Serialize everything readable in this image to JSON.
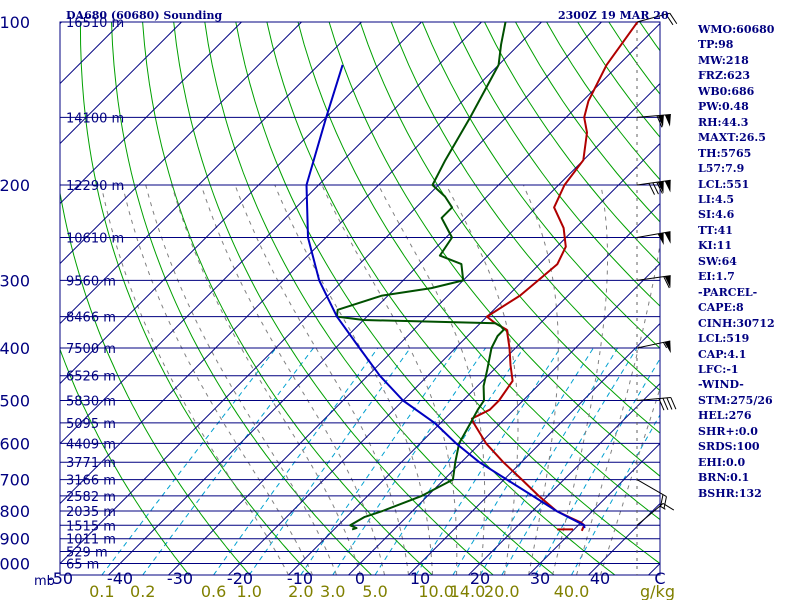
{
  "header": {
    "station": "DA680 (60680) Sounding",
    "time": "2300Z 19 MAR 20"
  },
  "indices": [
    "WMO:60680",
    "TP:98",
    "MW:218",
    "FRZ:623",
    "WB0:686",
    "PW:0.48",
    "RH:44.3",
    "MAXT:26.5",
    "TH:5765",
    "L57:7.9",
    "LCL:551",
    "LI:4.5",
    "SI:4.6",
    "TT:41",
    "KI:11",
    "SW:64",
    "EI:1.7",
    "-PARCEL-",
    "CAPE:8",
    "CINH:30712",
    "LCL:519",
    "CAP:4.1",
    "LFC:-1",
    "-WIND-",
    "STM:275/26",
    "HEL:276",
    "SHR+:0.0",
    "SRDS:100",
    "EHI:0.0",
    "BRN:0.1",
    "BSHR:132"
  ],
  "colors": {
    "background": "#ffffff",
    "isobar": "#000080",
    "isotherm": "#000080",
    "dry_adiabat": "#00a000",
    "moist_adiabat": "#808080",
    "mixing_ratio": "#00a0d0",
    "temperature": "#b00000",
    "dewpoint": "#005000",
    "parcel": "#0000c0",
    "label": "#000080",
    "mixing_label": "#808000",
    "wind_barb": "#000000"
  },
  "chart_data": {
    "type": "skew-t",
    "pressure_axis": {
      "scale": "log",
      "range": [
        1050,
        100
      ],
      "unit": "mb",
      "ticks": [
        100,
        200,
        300,
        400,
        500,
        600,
        700,
        800,
        900,
        1000
      ]
    },
    "temperature_axis": {
      "range": [
        -50,
        50
      ],
      "unit": "C",
      "ticks": [
        -50,
        -40,
        -30,
        -20,
        -10,
        0,
        10,
        20,
        30,
        40,
        50
      ],
      "tick_labels": [
        "-50",
        "-40",
        "-30",
        "-20",
        "-10",
        "0",
        "10",
        "20",
        "30",
        "40",
        "C"
      ]
    },
    "mixing_ratio_axis": {
      "unit": "g/kg",
      "ticks": [
        "0.1",
        "0.2",
        "0.6",
        "1.0",
        "2.0",
        "3.0",
        "5.0",
        "10.0",
        "14.0",
        "20.0",
        "40.0"
      ]
    },
    "height_labels": [
      {
        "p": 100,
        "label": "16510 m"
      },
      {
        "p": 150,
        "label": "14100 m"
      },
      {
        "p": 200,
        "label": "12290 m"
      },
      {
        "p": 250,
        "label": "10610 m"
      },
      {
        "p": 300,
        "label": "9560 m"
      },
      {
        "p": 350,
        "label": "8466 m"
      },
      {
        "p": 400,
        "label": "7500 m"
      },
      {
        "p": 450,
        "label": "6526 m"
      },
      {
        "p": 500,
        "label": "5830 m"
      },
      {
        "p": 550,
        "label": "5095 m"
      },
      {
        "p": 600,
        "label": "4409 m"
      },
      {
        "p": 650,
        "label": "3771 m"
      },
      {
        "p": 700,
        "label": "3166 m"
      },
      {
        "p": 750,
        "label": "2582 m"
      },
      {
        "p": 800,
        "label": "2035 m"
      },
      {
        "p": 850,
        "label": "1515 m"
      },
      {
        "p": 900,
        "label": "1011 m"
      },
      {
        "p": 950,
        "label": "529 m"
      },
      {
        "p": 1000,
        "label": "65 m"
      }
    ],
    "isobars": [
      100,
      150,
      200,
      250,
      300,
      350,
      400,
      450,
      500,
      550,
      600,
      650,
      700,
      750,
      800,
      850,
      900,
      950,
      1000
    ],
    "series": [
      {
        "points": [
          [
            870,
            31.5
          ],
          [
            850,
            31
          ],
          [
            840,
            30
          ],
          [
            820,
            27
          ],
          [
            800,
            24
          ],
          [
            750,
            18.5
          ],
          [
            700,
            13
          ],
          [
            650,
            7
          ],
          [
            600,
            1
          ],
          [
            550,
            -4.5
          ],
          [
            540,
            -5.5
          ],
          [
            520,
            -4
          ],
          [
            500,
            -4
          ],
          [
            460,
            -5
          ],
          [
            430,
            -8
          ],
          [
            400,
            -11
          ],
          [
            370,
            -14.5
          ],
          [
            360,
            -17.5
          ],
          [
            350,
            -20
          ],
          [
            320,
            -18
          ],
          [
            300,
            -17.5
          ],
          [
            280,
            -17
          ],
          [
            260,
            -18.5
          ],
          [
            240,
            -22
          ],
          [
            220,
            -27
          ],
          [
            200,
            -29
          ],
          [
            180,
            -30
          ],
          [
            160,
            -34
          ],
          [
            150,
            -37
          ],
          [
            140,
            -39
          ],
          [
            120,
            -42
          ],
          [
            100,
            -44
          ]
        ]
      },
      {
        "points": [
          [
            865,
            -7
          ],
          [
            860,
            -6.5
          ],
          [
            850,
            -8
          ],
          [
            820,
            -7
          ],
          [
            800,
            -5
          ],
          [
            750,
            -1
          ],
          [
            700,
            1.5
          ],
          [
            650,
            -1
          ],
          [
            600,
            -3.5
          ],
          [
            550,
            -5
          ],
          [
            520,
            -6
          ],
          [
            500,
            -6.5
          ],
          [
            470,
            -9
          ],
          [
            440,
            -11
          ],
          [
            400,
            -14
          ],
          [
            380,
            -15
          ],
          [
            370,
            -15
          ],
          [
            365,
            -16
          ],
          [
            360,
            -17.5
          ],
          [
            355,
            -40
          ],
          [
            350,
            -45
          ],
          [
            340,
            -46
          ],
          [
            320,
            -41
          ],
          [
            310,
            -34
          ],
          [
            300,
            -30
          ],
          [
            280,
            -33
          ],
          [
            270,
            -38
          ],
          [
            250,
            -39
          ],
          [
            230,
            -44
          ],
          [
            220,
            -44
          ],
          [
            210,
            -47
          ],
          [
            200,
            -51
          ],
          [
            180,
            -53
          ],
          [
            150,
            -56
          ],
          [
            120,
            -60
          ],
          [
            110,
            -63
          ],
          [
            100,
            -66
          ]
        ]
      },
      {
        "points": [
          [
            860,
            31.5
          ],
          [
            850,
            31
          ],
          [
            800,
            24
          ],
          [
            750,
            17.5
          ],
          [
            700,
            10.5
          ],
          [
            650,
            3
          ],
          [
            600,
            -4
          ],
          [
            550,
            -11
          ],
          [
            500,
            -20
          ],
          [
            450,
            -28
          ],
          [
            400,
            -36
          ],
          [
            350,
            -45
          ],
          [
            300,
            -54
          ],
          [
            250,
            -63
          ],
          [
            200,
            -72
          ],
          [
            150,
            -80
          ],
          [
            120,
            -86
          ]
        ]
      }
    ],
    "surface_marker": {
      "p": 865,
      "t": 28.5
    },
    "wind_barbs": [
      {
        "p": 100,
        "dir": 255,
        "spd": 20
      },
      {
        "p": 150,
        "dir": 265,
        "spd": 110
      },
      {
        "p": 200,
        "dir": 262,
        "spd": 130
      },
      {
        "p": 250,
        "dir": 260,
        "spd": 100
      },
      {
        "p": 300,
        "dir": 262,
        "spd": 60
      },
      {
        "p": 400,
        "dir": 258,
        "spd": 55
      },
      {
        "p": 500,
        "dir": 265,
        "spd": 40
      },
      {
        "p": 700,
        "dir": 300,
        "spd": 20
      },
      {
        "p": 850,
        "dir": 230,
        "spd": 15
      }
    ]
  }
}
